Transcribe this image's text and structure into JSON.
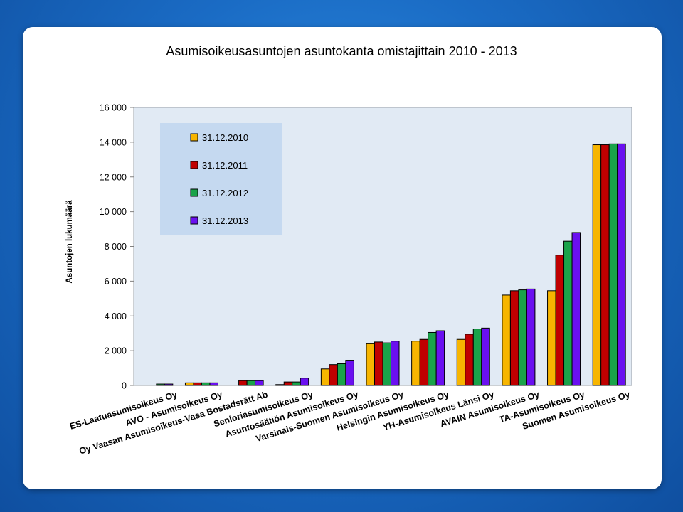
{
  "chart_data": {
    "type": "bar",
    "title": "Asumisoikeusasuntojen asuntokanta omistajittain 2010 - 2013",
    "ylabel": "Asuntojen lukumäärä",
    "xlabel": "",
    "ylim": [
      0,
      16000
    ],
    "yticks": [
      0,
      2000,
      4000,
      6000,
      8000,
      10000,
      12000,
      14000,
      16000
    ],
    "ytick_labels": [
      "0",
      "2 000",
      "4 000",
      "6 000",
      "8 000",
      "10 000",
      "12 000",
      "14 000",
      "16 000"
    ],
    "grid": false,
    "legend_position": "top-left",
    "categories": [
      "ES-Laatuasumisoikeus Oy",
      "AVO - Asumisoikeus Oy",
      "Oy Vaasan Asumisoikeus-Vasa Bostadsrätt Ab",
      "Senioriasumisoikeus Oy",
      "Asuntosäätiön Asumisoikeus Oy",
      "Varsinais-Suomen Asumisoikeus Oy",
      "Helsingin Asumisoikeus Oy",
      "YH-Asumisoikeus Länsi Oy",
      "AVAIN Asumisoikeus Oy",
      "TA-Asumisoikeus Oy",
      "Suomen Asumisoikeus Oy"
    ],
    "series": [
      {
        "name": "31.12.2010",
        "color": "#f7b500",
        "values": [
          0,
          150,
          0,
          50,
          950,
          2400,
          2550,
          2650,
          5200,
          5450,
          13850
        ]
      },
      {
        "name": "31.12.2011",
        "color": "#c00000",
        "values": [
          0,
          150,
          280,
          200,
          1200,
          2500,
          2650,
          2950,
          5450,
          7500,
          13850
        ]
      },
      {
        "name": "31.12.2012",
        "color": "#1aa34a",
        "values": [
          80,
          150,
          280,
          200,
          1250,
          2450,
          3050,
          3250,
          5500,
          8300,
          13900
        ]
      },
      {
        "name": "31.12.2013",
        "color": "#6a10f0",
        "values": [
          80,
          150,
          280,
          420,
          1450,
          2550,
          3150,
          3300,
          5550,
          8800,
          13900
        ]
      }
    ]
  }
}
